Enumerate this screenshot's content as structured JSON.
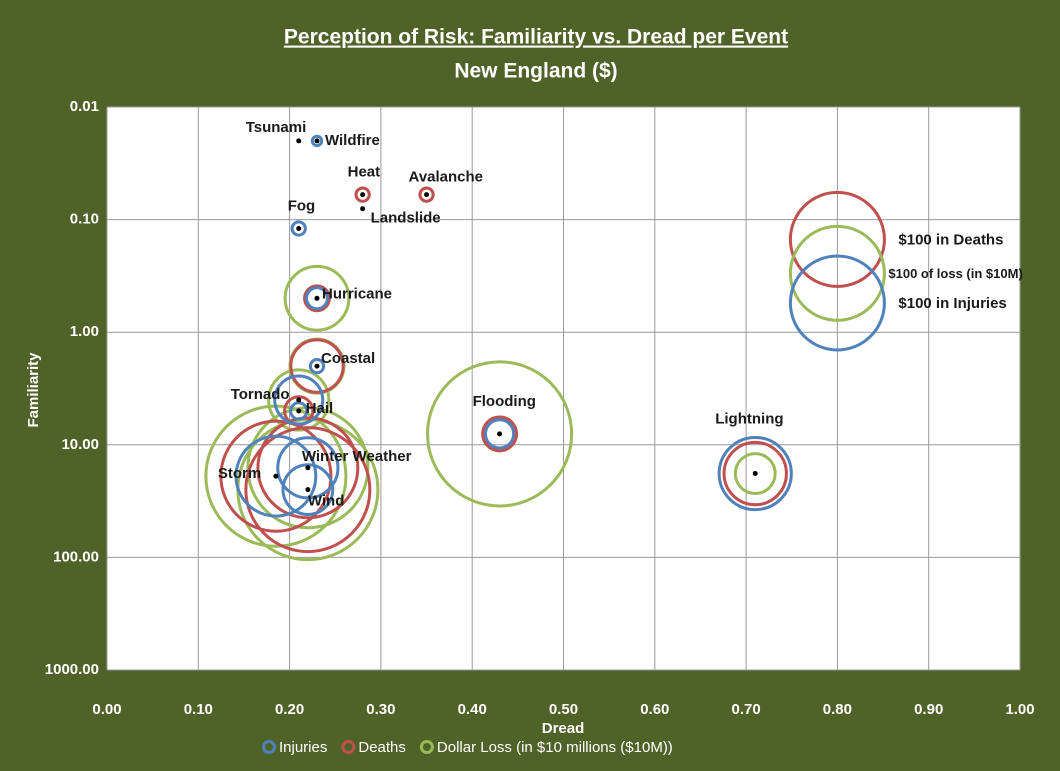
{
  "chart_data": {
    "type": "bubble",
    "title": "Perception of Risk: Familiarity vs. Dread per Event",
    "subtitle": "New England ($)",
    "x_label": "Dread",
    "y_label": "Familiarity",
    "y_log": true,
    "y_reversed": true,
    "grid": true,
    "xlim": [
      0,
      1
    ],
    "ylim": [
      0.01,
      1000
    ],
    "xticks": [
      {
        "value": 0,
        "label": "0.00"
      },
      {
        "value": 0.1,
        "label": "0.10"
      },
      {
        "value": 0.2,
        "label": "0.20"
      },
      {
        "value": 0.3,
        "label": "0.30"
      },
      {
        "value": 0.4,
        "label": "0.40"
      },
      {
        "value": 0.5,
        "label": "0.50"
      },
      {
        "value": 0.6,
        "label": "0.60"
      },
      {
        "value": 0.7,
        "label": "0.70"
      },
      {
        "value": 0.8,
        "label": "0.80"
      },
      {
        "value": 0.9,
        "label": "0.90"
      },
      {
        "value": 1,
        "label": "1.00"
      }
    ],
    "yticks": [
      0.01,
      {
        "value": 0.1,
        "label": "0.10"
      },
      {
        "value": 1,
        "label": "1.00"
      },
      {
        "value": 10,
        "label": "10.00"
      },
      {
        "value": 100,
        "label": "100.00"
      },
      {
        "value": 1000,
        "label": "1000.00"
      }
    ],
    "labels": [
      "Tsunami",
      "Wildfire",
      "Heat",
      "Avalanche",
      "Landslide",
      "Fog",
      "Hurricane",
      "Coastal",
      "Tornado",
      "Hail",
      "Flooding",
      "Lightning",
      "Winter Weather",
      "Storm",
      "Wind"
    ],
    "x": [
      0.21,
      0.23,
      0.28,
      0.35,
      0.28,
      0.21,
      0.23,
      0.23,
      0.21,
      0.21,
      0.43,
      0.71,
      0.22,
      0.185,
      0.22
    ],
    "y": [
      0.02,
      0.02,
      0.06,
      0.06,
      0.08,
      0.12,
      0.5,
      2,
      4,
      5,
      8,
      18,
      16,
      19,
      25
    ],
    "series": [
      {
        "name": "Dollar Loss (in $10 millions ($10M))",
        "color": "#9bbb59",
        "sizes": [
          null,
          null,
          null,
          null,
          null,
          null,
          46,
          33,
          41,
          null,
          235,
          18,
          163,
          222,
          222
        ]
      },
      {
        "name": "Deaths",
        "color": "#c0504d",
        "sizes": [
          null,
          null,
          2,
          2,
          null,
          null,
          7,
          31,
          null,
          9,
          13,
          44,
          113,
          137,
          174
        ]
      },
      {
        "name": "Injuries",
        "color": "#4f81bd",
        "sizes": [
          null,
          1,
          null,
          null,
          null,
          2,
          5,
          2,
          26,
          3,
          9,
          59,
          41,
          72,
          28
        ]
      }
    ],
    "legend_order": [
      2,
      1,
      0
    ],
    "reference": [
      {
        "label": "$100 in Deaths",
        "series": 1,
        "x": 0.8,
        "y": 0.15,
        "size": 100
      },
      {
        "label": "$100 of loss (in $10M)",
        "series": 0,
        "x": 0.8,
        "y": 0.3,
        "size": 100
      },
      {
        "label": "$100 in Injuries",
        "series": 2,
        "x": 0.8,
        "y": 0.55,
        "size": 100
      }
    ]
  }
}
